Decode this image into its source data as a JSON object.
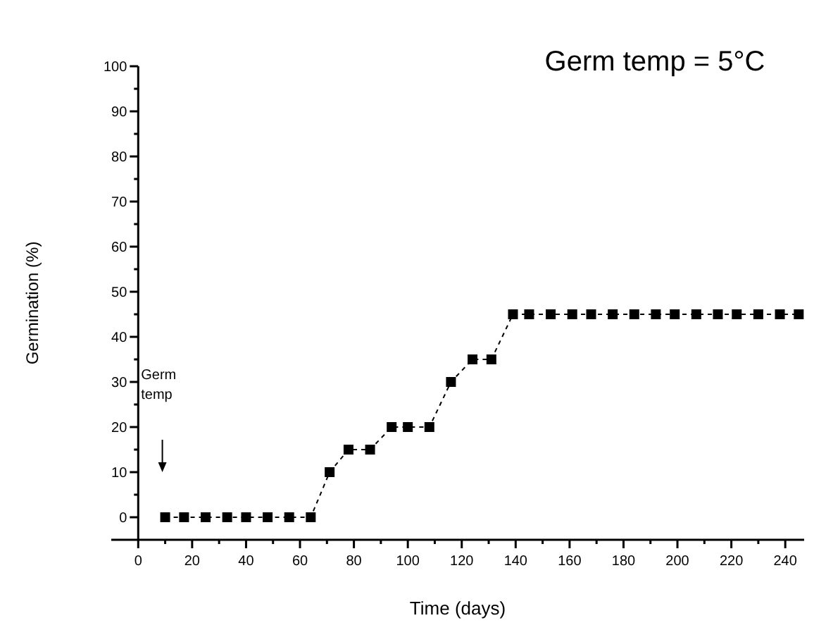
{
  "chart_data": {
    "type": "line",
    "title": "Germ temp = 5°C",
    "xlabel": "Time (days)",
    "ylabel": "Germination (%)",
    "x": [
      10,
      17,
      25,
      33,
      40,
      48,
      56,
      64,
      71,
      78,
      86,
      94,
      100,
      108,
      116,
      124,
      131,
      139,
      145,
      153,
      161,
      168,
      176,
      184,
      192,
      199,
      207,
      215,
      222,
      230,
      238,
      245
    ],
    "values": [
      0,
      0,
      0,
      0,
      0,
      0,
      0,
      0,
      10,
      15,
      15,
      20,
      20,
      20,
      30,
      35,
      35,
      45,
      45,
      45,
      45,
      45,
      45,
      45,
      45,
      45,
      45,
      45,
      45,
      45,
      45,
      45
    ],
    "color": "#000000",
    "marker": "square",
    "line_style": "dashed",
    "grid": false,
    "annotations": [
      "Germ temp"
    ],
    "xlim": [
      -10,
      247
    ],
    "ylim": [
      -5,
      100
    ],
    "xticks": [
      0,
      {
        "value": 10,
        "label": null
      },
      20,
      {
        "value": 30,
        "label": null
      },
      40,
      {
        "value": 50,
        "label": null
      },
      60,
      {
        "value": 70,
        "label": null
      },
      80,
      {
        "value": 90,
        "label": null
      },
      100,
      {
        "value": 110,
        "label": null
      },
      120,
      {
        "value": 130,
        "label": null
      },
      140,
      {
        "value": 150,
        "label": null
      },
      160,
      {
        "value": 170,
        "label": null
      },
      180,
      {
        "value": 190,
        "label": null
      },
      200,
      {
        "value": 210,
        "label": null
      },
      220,
      {
        "value": 230,
        "label": null
      },
      240
    ],
    "yticks": [
      0,
      {
        "value": 5,
        "label": null
      },
      10,
      {
        "value": 15,
        "label": null
      },
      20,
      {
        "value": 25,
        "label": null
      },
      30,
      {
        "value": 35,
        "label": null
      },
      40,
      {
        "value": 45,
        "label": null
      },
      50,
      {
        "value": 55,
        "label": null
      },
      60,
      {
        "value": 65,
        "label": null
      },
      70,
      {
        "value": 75,
        "label": null
      },
      80,
      {
        "value": 85,
        "label": null
      },
      90,
      {
        "value": 95,
        "label": null
      },
      100
    ]
  }
}
